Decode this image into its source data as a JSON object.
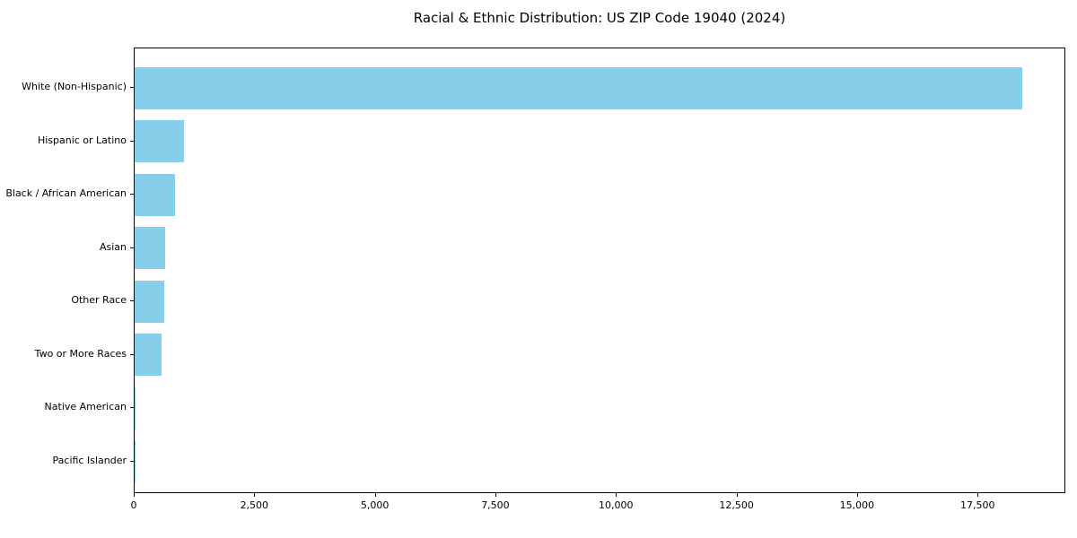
{
  "chart_data": {
    "type": "bar",
    "orientation": "horizontal",
    "title": "Racial & Ethnic Distribution: US ZIP Code 19040 (2024)",
    "categories": [
      "White (Non-Hispanic)",
      "Hispanic or Latino",
      "Black / African American",
      "Asian",
      "Other Race",
      "Two or More Races",
      "Native American",
      "Pacific Islander"
    ],
    "values": [
      18400,
      1030,
      840,
      630,
      615,
      560,
      15,
      6
    ],
    "xlabel": "",
    "ylabel": "",
    "xlim": [
      0,
      19320
    ],
    "xticks": [
      0,
      2500,
      5000,
      7500,
      10000,
      12500,
      15000,
      17500
    ],
    "xtick_labels": [
      "0",
      "2,500",
      "5,000",
      "7,500",
      "10,000",
      "12,500",
      "15,000",
      "17,500"
    ],
    "bar_color": "#87CEEB",
    "background_color": "#ffffff",
    "grid": false,
    "legend": false
  }
}
